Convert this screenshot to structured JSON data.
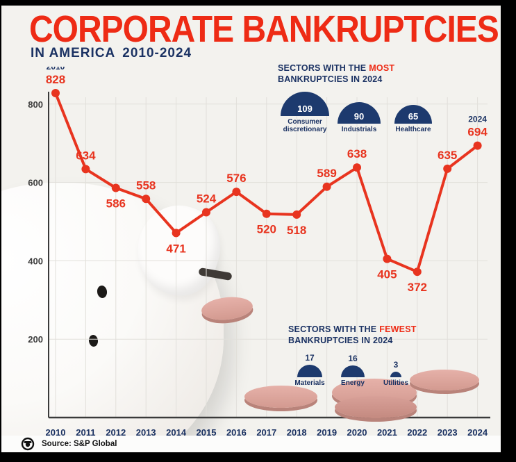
{
  "title": "CORPORATE BANKRUPTCIES",
  "subtitle": {
    "region": "IN AMERICA",
    "years": "2010-2024"
  },
  "colors": {
    "accent_red": "#ee2b15",
    "navy": "#1b3263",
    "dome_navy": "#1d3a6e",
    "coin_pink": "#d39a90"
  },
  "chart_data": {
    "type": "line",
    "title": "Corporate bankruptcies in America 2010-2024",
    "x": [
      "2010",
      "2011",
      "2012",
      "2013",
      "2014",
      "2015",
      "2016",
      "2017",
      "2018",
      "2019",
      "2020",
      "2021",
      "2022",
      "2023",
      "2024"
    ],
    "values": [
      828,
      634,
      586,
      558,
      471,
      524,
      576,
      520,
      518,
      589,
      638,
      405,
      372,
      635,
      694
    ],
    "label_positions": [
      "above",
      "above",
      "below",
      "above",
      "below",
      "above",
      "above",
      "below",
      "below",
      "above",
      "above",
      "below",
      "below",
      "above",
      "above"
    ],
    "first_year_label": "2010",
    "last_year_label": "2024",
    "yticks": [
      0,
      200,
      400,
      600,
      800
    ],
    "ylim": [
      0,
      880
    ],
    "grid": true,
    "legend": "none",
    "line_color": "#e8341f"
  },
  "most_panel": {
    "heading_prefix": "SECTORS WITH THE",
    "heading_highlight": "MOST",
    "heading_line2": "BANKRUPTCIES IN 2024",
    "items": [
      {
        "value": "109",
        "label": "Consumer discretionary",
        "dome_w": 70
      },
      {
        "value": "90",
        "label": "Industrials",
        "dome_w": 62
      },
      {
        "value": "65",
        "label": "Healthcare",
        "dome_w": 54
      }
    ]
  },
  "fewest_panel": {
    "heading_prefix": "SECTORS WITH THE",
    "heading_highlight": "FEWEST",
    "heading_line2": "BANKRUPTCIES IN 2024",
    "items": [
      {
        "value": "17",
        "label": "Materials",
        "dome_w": 36
      },
      {
        "value": "16",
        "label": "Energy",
        "dome_w": 34
      },
      {
        "value": "3",
        "label": "Utilities",
        "dome_w": 16
      }
    ]
  },
  "footer": {
    "source": "Source: S&P Global"
  }
}
